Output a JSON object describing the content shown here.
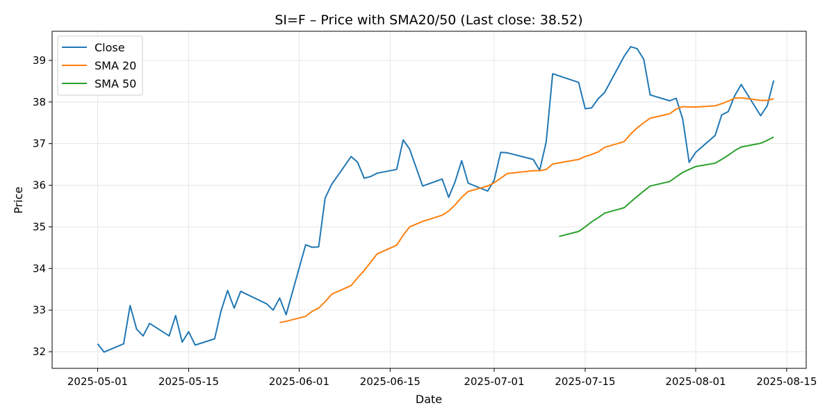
{
  "chart_data": {
    "type": "line",
    "title": "SI=F – Price with SMA20/50 (Last close: 38.52)",
    "xlabel": "Date",
    "ylabel": "Price",
    "x_ticks": [
      "2025-05-01",
      "2025-05-15",
      "2025-06-01",
      "2025-06-15",
      "2025-07-01",
      "2025-07-15",
      "2025-08-01",
      "2025-08-15"
    ],
    "y_ticks": [
      32,
      33,
      34,
      35,
      36,
      37,
      38,
      39
    ],
    "ylim": [
      31.6,
      39.7
    ],
    "xlim": [
      "2025-04-24",
      "2025-08-18"
    ],
    "grid": true,
    "legend_position": "top-left",
    "colors": {
      "close": "#1f77b4",
      "sma20": "#ff7f0e",
      "sma50": "#2ca02c"
    },
    "series": [
      {
        "name": "Close",
        "points": [
          [
            "2025-05-01",
            32.19
          ],
          [
            "2025-05-02",
            31.99
          ],
          [
            "2025-05-05",
            32.19
          ],
          [
            "2025-05-06",
            33.11
          ],
          [
            "2025-05-07",
            32.54
          ],
          [
            "2025-05-08",
            32.38
          ],
          [
            "2025-05-09",
            32.68
          ],
          [
            "2025-05-12",
            32.38
          ],
          [
            "2025-05-13",
            32.87
          ],
          [
            "2025-05-14",
            32.23
          ],
          [
            "2025-05-15",
            32.48
          ],
          [
            "2025-05-16",
            32.16
          ],
          [
            "2025-05-19",
            32.31
          ],
          [
            "2025-05-20",
            32.99
          ],
          [
            "2025-05-21",
            33.47
          ],
          [
            "2025-05-22",
            33.05
          ],
          [
            "2025-05-23",
            33.45
          ],
          [
            "2025-05-27",
            33.15
          ],
          [
            "2025-05-28",
            33.0
          ],
          [
            "2025-05-29",
            33.29
          ],
          [
            "2025-05-30",
            32.89
          ],
          [
            "2025-06-02",
            34.57
          ],
          [
            "2025-06-03",
            34.51
          ],
          [
            "2025-06-04",
            34.52
          ],
          [
            "2025-06-05",
            35.69
          ],
          [
            "2025-06-06",
            36.02
          ],
          [
            "2025-06-09",
            36.69
          ],
          [
            "2025-06-10",
            36.55
          ],
          [
            "2025-06-11",
            36.17
          ],
          [
            "2025-06-12",
            36.21
          ],
          [
            "2025-06-13",
            36.29
          ],
          [
            "2025-06-16",
            36.38
          ],
          [
            "2025-06-17",
            37.09
          ],
          [
            "2025-06-18",
            36.87
          ],
          [
            "2025-06-20",
            35.98
          ],
          [
            "2025-06-23",
            36.15
          ],
          [
            "2025-06-24",
            35.71
          ],
          [
            "2025-06-25",
            36.09
          ],
          [
            "2025-06-26",
            36.59
          ],
          [
            "2025-06-27",
            36.05
          ],
          [
            "2025-06-30",
            35.86
          ],
          [
            "2025-07-01",
            36.12
          ],
          [
            "2025-07-02",
            36.79
          ],
          [
            "2025-07-03",
            36.78
          ],
          [
            "2025-07-07",
            36.62
          ],
          [
            "2025-07-08",
            36.36
          ],
          [
            "2025-07-09",
            37.04
          ],
          [
            "2025-07-10",
            38.68
          ],
          [
            "2025-07-14",
            38.47
          ],
          [
            "2025-07-15",
            37.84
          ],
          [
            "2025-07-16",
            37.86
          ],
          [
            "2025-07-17",
            38.08
          ],
          [
            "2025-07-18",
            38.23
          ],
          [
            "2025-07-21",
            39.1
          ],
          [
            "2025-07-22",
            39.33
          ],
          [
            "2025-07-23",
            39.28
          ],
          [
            "2025-07-24",
            39.03
          ],
          [
            "2025-07-25",
            38.17
          ],
          [
            "2025-07-28",
            38.03
          ],
          [
            "2025-07-29",
            38.09
          ],
          [
            "2025-07-30",
            37.59
          ],
          [
            "2025-07-31",
            36.55
          ],
          [
            "2025-08-01",
            36.79
          ],
          [
            "2025-08-04",
            37.2
          ],
          [
            "2025-08-05",
            37.69
          ],
          [
            "2025-08-06",
            37.77
          ],
          [
            "2025-08-07",
            38.15
          ],
          [
            "2025-08-08",
            38.42
          ],
          [
            "2025-08-11",
            37.67
          ],
          [
            "2025-08-12",
            37.91
          ],
          [
            "2025-08-13",
            38.52
          ]
        ]
      },
      {
        "name": "SMA 20",
        "points": [
          [
            "2025-05-29",
            32.7
          ],
          [
            "2025-05-30",
            32.73
          ],
          [
            "2025-06-02",
            32.85
          ],
          [
            "2025-06-03",
            32.97
          ],
          [
            "2025-06-04",
            33.05
          ],
          [
            "2025-06-05",
            33.2
          ],
          [
            "2025-06-06",
            33.38
          ],
          [
            "2025-06-09",
            33.59
          ],
          [
            "2025-06-10",
            33.78
          ],
          [
            "2025-06-11",
            33.95
          ],
          [
            "2025-06-12",
            34.15
          ],
          [
            "2025-06-13",
            34.35
          ],
          [
            "2025-06-16",
            34.56
          ],
          [
            "2025-06-17",
            34.8
          ],
          [
            "2025-06-18",
            35.0
          ],
          [
            "2025-06-20",
            35.13
          ],
          [
            "2025-06-23",
            35.28
          ],
          [
            "2025-06-24",
            35.38
          ],
          [
            "2025-06-25",
            35.53
          ],
          [
            "2025-06-26",
            35.71
          ],
          [
            "2025-06-27",
            35.85
          ],
          [
            "2025-06-30",
            35.98
          ],
          [
            "2025-07-01",
            36.06
          ],
          [
            "2025-07-02",
            36.17
          ],
          [
            "2025-07-03",
            36.28
          ],
          [
            "2025-07-07",
            36.35
          ],
          [
            "2025-07-08",
            36.35
          ],
          [
            "2025-07-09",
            36.38
          ],
          [
            "2025-07-10",
            36.51
          ],
          [
            "2025-07-14",
            36.62
          ],
          [
            "2025-07-15",
            36.69
          ],
          [
            "2025-07-16",
            36.74
          ],
          [
            "2025-07-17",
            36.8
          ],
          [
            "2025-07-18",
            36.91
          ],
          [
            "2025-07-21",
            37.05
          ],
          [
            "2025-07-22",
            37.23
          ],
          [
            "2025-07-23",
            37.38
          ],
          [
            "2025-07-24",
            37.5
          ],
          [
            "2025-07-25",
            37.61
          ],
          [
            "2025-07-28",
            37.72
          ],
          [
            "2025-07-29",
            37.83
          ],
          [
            "2025-07-30",
            37.89
          ],
          [
            "2025-07-31",
            37.88
          ],
          [
            "2025-08-01",
            37.88
          ],
          [
            "2025-08-04",
            37.91
          ],
          [
            "2025-08-05",
            37.96
          ],
          [
            "2025-08-06",
            38.02
          ],
          [
            "2025-08-07",
            38.09
          ],
          [
            "2025-08-08",
            38.1
          ],
          [
            "2025-08-11",
            38.04
          ],
          [
            "2025-08-12",
            38.04
          ],
          [
            "2025-08-13",
            38.08
          ]
        ]
      },
      {
        "name": "SMA 50",
        "points": [
          [
            "2025-07-11",
            34.77
          ],
          [
            "2025-07-14",
            34.89
          ],
          [
            "2025-07-15",
            35.0
          ],
          [
            "2025-07-16",
            35.12
          ],
          [
            "2025-07-17",
            35.22
          ],
          [
            "2025-07-18",
            35.33
          ],
          [
            "2025-07-21",
            35.46
          ],
          [
            "2025-07-22",
            35.6
          ],
          [
            "2025-07-23",
            35.73
          ],
          [
            "2025-07-24",
            35.86
          ],
          [
            "2025-07-25",
            35.98
          ],
          [
            "2025-07-28",
            36.09
          ],
          [
            "2025-07-29",
            36.2
          ],
          [
            "2025-07-30",
            36.31
          ],
          [
            "2025-07-31",
            36.38
          ],
          [
            "2025-08-01",
            36.45
          ],
          [
            "2025-08-04",
            36.53
          ],
          [
            "2025-08-05",
            36.62
          ],
          [
            "2025-08-06",
            36.72
          ],
          [
            "2025-08-07",
            36.83
          ],
          [
            "2025-08-08",
            36.92
          ],
          [
            "2025-08-11",
            37.01
          ],
          [
            "2025-08-12",
            37.08
          ],
          [
            "2025-08-13",
            37.16
          ]
        ]
      }
    ]
  }
}
